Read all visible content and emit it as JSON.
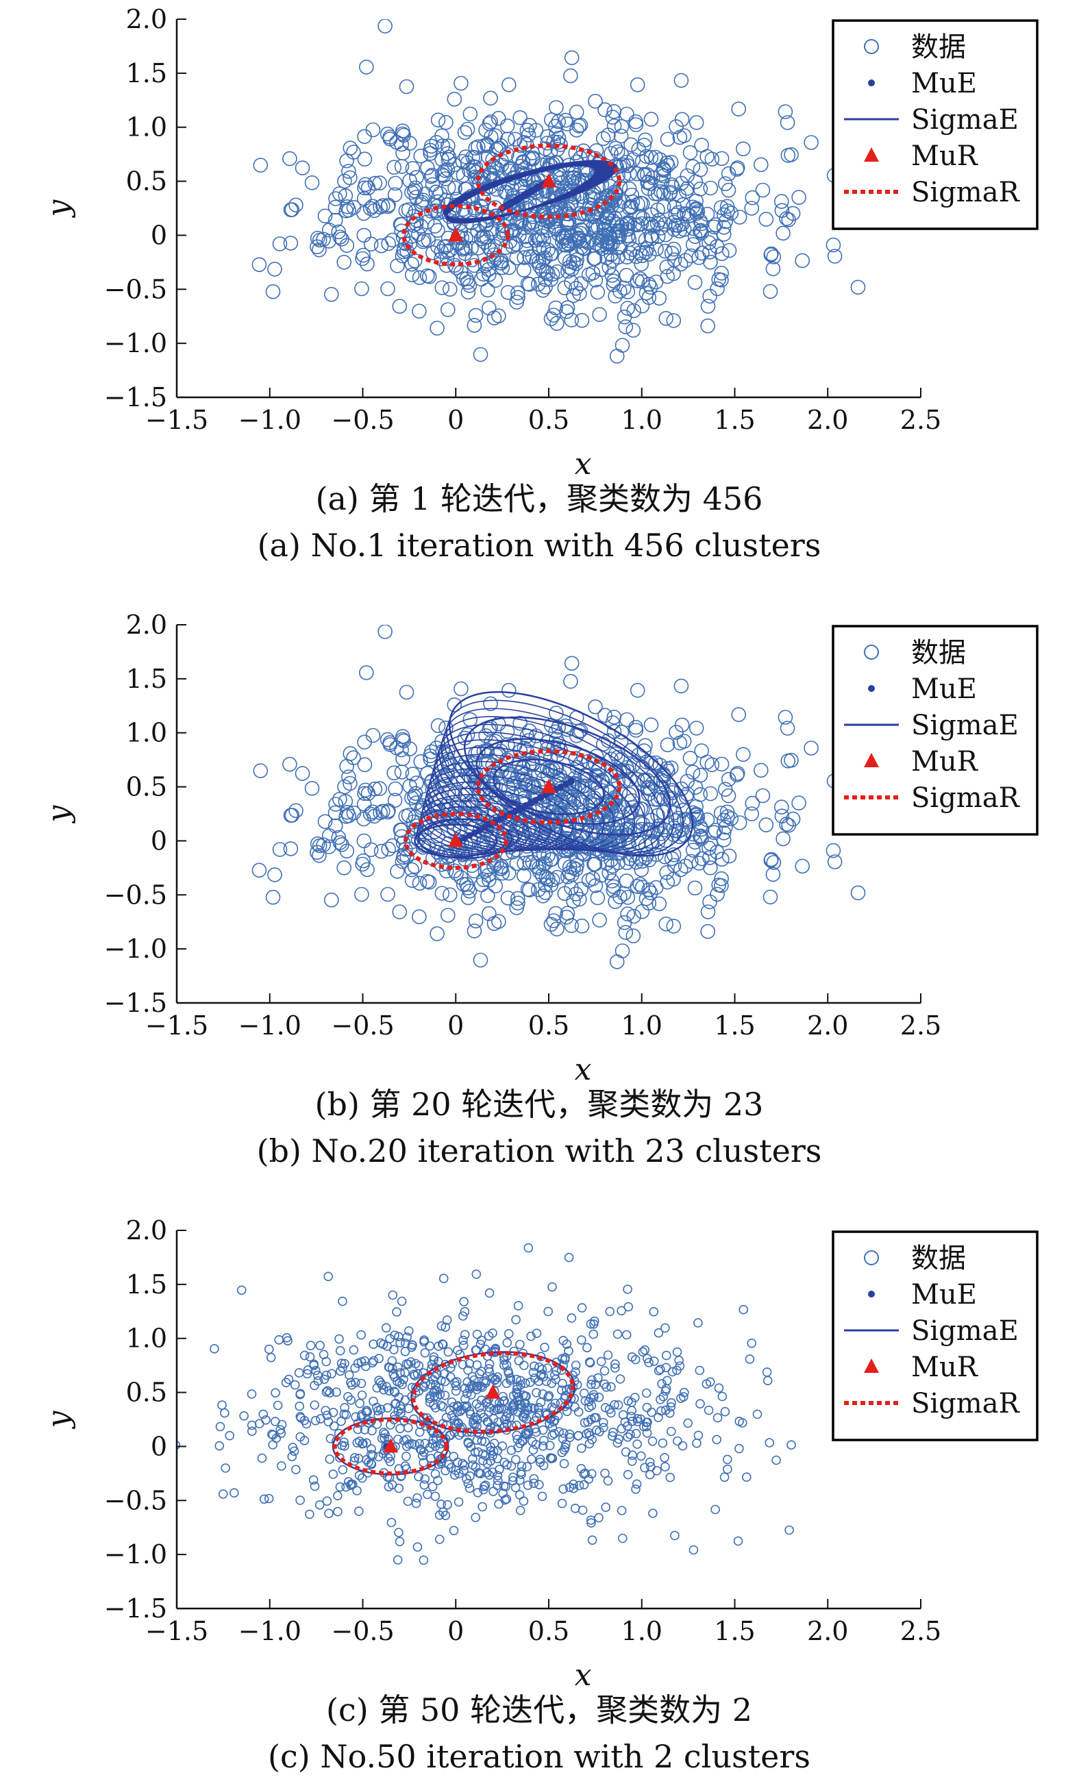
{
  "chart_data": [
    {
      "type": "scatter",
      "caption_zh": "(a) 第 1 轮迭代，聚类数为 456",
      "caption_en": "(a) No.1 iteration with 456 clusters",
      "xlabel": "x",
      "ylabel": "y",
      "xlim": [
        -1.5,
        2.5
      ],
      "ylim": [
        -1.5,
        2.0
      ],
      "xticks": [
        "−1.5",
        "−1.0",
        "−0.5",
        "0",
        "0.5",
        "1.0",
        "1.5",
        "2.0",
        "2.5"
      ],
      "yticks": [
        "−1.5",
        "−1.0",
        "−0.5",
        "0",
        "0.5",
        "1.0",
        "1.5",
        "2.0"
      ],
      "grid": false,
      "legend_placement": "top-right",
      "legend": [
        "数据",
        "MuE",
        "SigmaE",
        "MuR",
        "SigmaR"
      ],
      "data_cloud": {
        "count": 1000,
        "center": [
          0.5,
          0.25
        ],
        "spread": [
          0.55,
          0.45
        ],
        "seed": 11
      },
      "mu_r": [
        [
          0.0,
          0.0
        ],
        [
          0.5,
          0.5
        ]
      ],
      "sigma_r": [
        {
          "center": [
            0.0,
            0.0
          ],
          "rx": 0.28,
          "ry": 0.27,
          "angle": 0
        },
        {
          "center": [
            0.5,
            0.5
          ],
          "rx": 0.38,
          "ry": 0.33,
          "angle": 0
        }
      ],
      "mu_e_band": {
        "from": [
          0.25,
          0.25
        ],
        "to": [
          0.5,
          0.5
        ],
        "count": 456
      },
      "sigma_e": [
        {
          "center": [
            0.35,
            0.38
          ],
          "rx": 0.42,
          "ry": 0.15,
          "angle": 18
        },
        {
          "center": [
            0.4,
            0.42
          ],
          "rx": 0.48,
          "ry": 0.17,
          "angle": 15
        }
      ]
    },
    {
      "type": "scatter",
      "caption_zh": "(b) 第 20 轮迭代，聚类数为 23",
      "caption_en": "(b) No.20 iteration with 23 clusters",
      "xlabel": "x",
      "ylabel": "y",
      "xlim": [
        -1.5,
        2.5
      ],
      "ylim": [
        -1.5,
        2.0
      ],
      "xticks": [
        "−1.5",
        "−1.0",
        "−0.5",
        "0",
        "0.5",
        "1.0",
        "1.5",
        "2.0",
        "2.5"
      ],
      "yticks": [
        "−1.5",
        "−1.0",
        "−0.5",
        "0",
        "0.5",
        "1.0",
        "1.5",
        "2.0"
      ],
      "grid": false,
      "legend_placement": "top-right",
      "legend": [
        "数据",
        "MuE",
        "SigmaE",
        "MuR",
        "SigmaR"
      ],
      "data_cloud": {
        "count": 1000,
        "center": [
          0.5,
          0.25
        ],
        "spread": [
          0.55,
          0.45
        ],
        "seed": 11
      },
      "mu_r": [
        [
          0.0,
          0.0
        ],
        [
          0.5,
          0.5
        ]
      ],
      "sigma_r": [
        {
          "center": [
            0.0,
            0.0
          ],
          "rx": 0.27,
          "ry": 0.25,
          "angle": 0
        },
        {
          "center": [
            0.5,
            0.5
          ],
          "rx": 0.38,
          "ry": 0.33,
          "angle": 0
        }
      ],
      "mu_e_band": {
        "from": [
          0.02,
          0.0
        ],
        "to": [
          0.62,
          0.55
        ],
        "count": 23
      },
      "sigma_e": [
        {
          "center": [
            0.0,
            0.0
          ],
          "rx": 0.22,
          "ry": 0.15,
          "angle": 0
        },
        {
          "center": [
            0.05,
            0.02
          ],
          "rx": 0.25,
          "ry": 0.18,
          "angle": 0
        },
        {
          "center": [
            0.5,
            0.5
          ],
          "rx": 0.3,
          "ry": 0.24,
          "angle": -10
        },
        {
          "center": [
            0.55,
            0.55
          ],
          "rx": 0.45,
          "ry": 0.35,
          "angle": -15
        },
        {
          "center": [
            0.6,
            0.6
          ],
          "rx": 0.58,
          "ry": 0.45,
          "angle": -20
        },
        {
          "center": [
            0.62,
            0.62
          ],
          "rx": 0.72,
          "ry": 0.55,
          "angle": -28
        }
      ]
    },
    {
      "type": "scatter",
      "caption_zh": "(c) 第 50 轮迭代，聚类数为 2",
      "caption_en": "(c) No.50 iteration with 2 clusters",
      "xlabel": "x",
      "ylabel": "y",
      "xlim": [
        -1.5,
        2.5
      ],
      "ylim": [
        -1.5,
        2.0
      ],
      "xticks": [
        "−1.5",
        "−1.0",
        "−0.5",
        "0",
        "0.5",
        "1.0",
        "1.5",
        "2.0",
        "2.5"
      ],
      "yticks": [
        "−1.5",
        "−1.0",
        "−0.5",
        "0",
        "0.5",
        "1.0",
        "1.5",
        "2.0"
      ],
      "grid": false,
      "legend_placement": "top-right",
      "legend": [
        "数据",
        "MuE",
        "SigmaE",
        "MuR",
        "SigmaR"
      ],
      "data_cloud": {
        "count": 1000,
        "center": [
          0.1,
          0.3
        ],
        "spread": [
          0.6,
          0.45
        ],
        "seed": 29
      },
      "mu_r": [
        [
          -0.35,
          0.0
        ],
        [
          0.2,
          0.5
        ]
      ],
      "sigma_r": [
        {
          "center": [
            -0.35,
            0.0
          ],
          "rx": 0.3,
          "ry": 0.25,
          "angle": 0
        },
        {
          "center": [
            0.2,
            0.5
          ],
          "rx": 0.43,
          "ry": 0.36,
          "angle": 5
        }
      ],
      "mu_e_band": {
        "from": [
          -0.37,
          0.0
        ],
        "to": [
          0.2,
          0.5
        ],
        "count": 2
      },
      "sigma_e": [
        {
          "center": [
            -0.35,
            0.0
          ],
          "rx": 0.31,
          "ry": 0.26,
          "angle": 0
        },
        {
          "center": [
            0.2,
            0.5
          ],
          "rx": 0.44,
          "ry": 0.37,
          "angle": 5
        }
      ]
    }
  ],
  "colors": {
    "data_points": "#3f6fb5",
    "mu_e": "#2a3f9e",
    "sigma_e": "#2a3f9e",
    "mu_r": "#e3201b",
    "sigma_r": "#e3201b",
    "axis": "#111111"
  }
}
